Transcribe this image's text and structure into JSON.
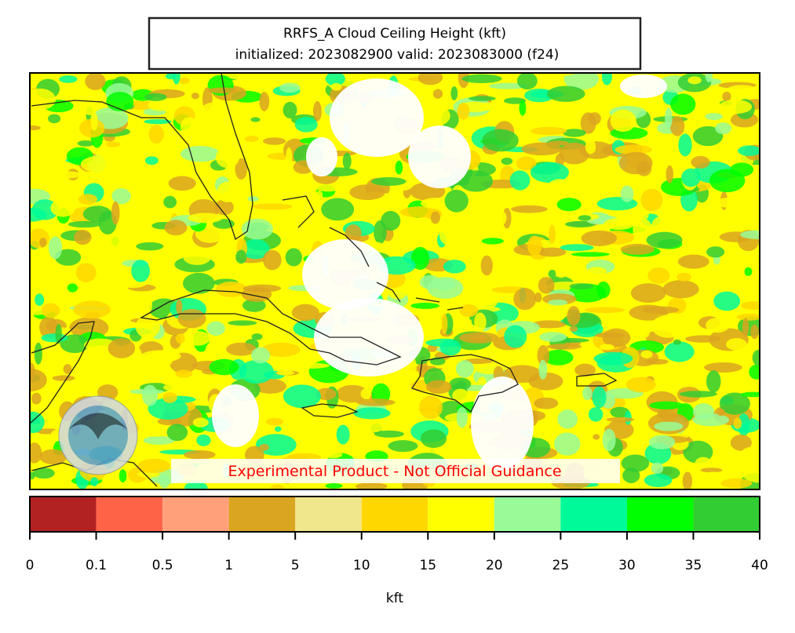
{
  "header": {
    "title": "RRFS_A Cloud Ceiling Height (kft)",
    "subtitle": "initialized: 2023082900 valid: 2023083000 (f24)"
  },
  "map": {
    "annotation": "Experimental Product - Not Official Guidance"
  },
  "colorbar": {
    "ticks": [
      0,
      0.1,
      0.5,
      1,
      5,
      10,
      15,
      20,
      25,
      30,
      35,
      40
    ],
    "colors": [
      "#b22222",
      "#ff6347",
      "#ffa07a",
      "#daa520",
      "#f0e68c",
      "#ffd700",
      "#ffff00",
      "#98fb98",
      "#00fa9a",
      "#00ff00",
      "#32cd32"
    ],
    "label": "kft"
  }
}
